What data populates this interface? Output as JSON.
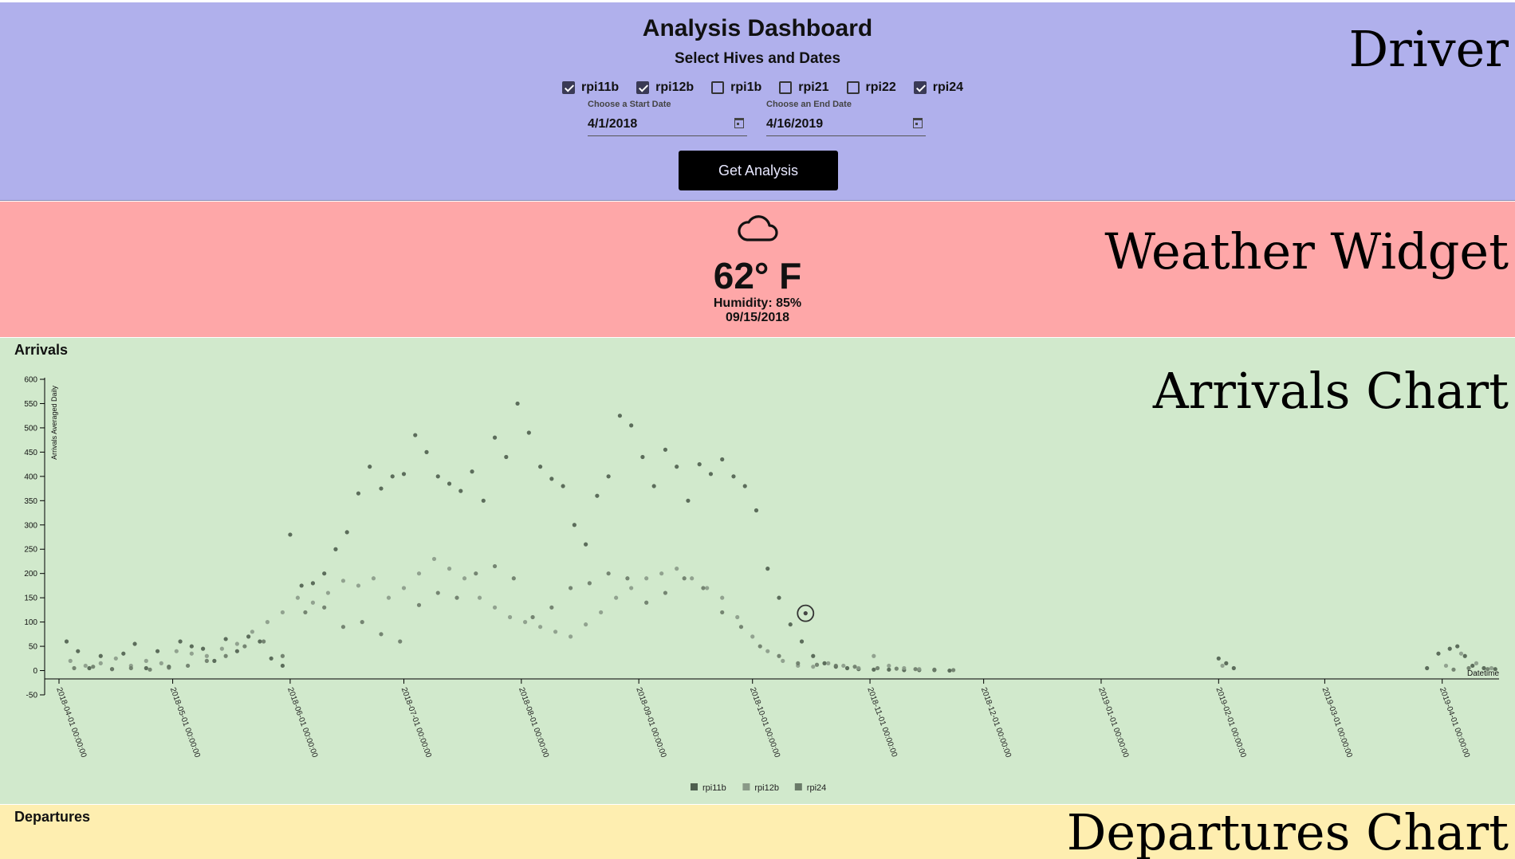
{
  "driver": {
    "title": "Analysis Dashboard",
    "subtitle": "Select Hives and Dates",
    "section_label": "Driver",
    "hives": [
      {
        "label": "rpi11b",
        "checked": true
      },
      {
        "label": "rpi12b",
        "checked": true
      },
      {
        "label": "rpi1b",
        "checked": false
      },
      {
        "label": "rpi21",
        "checked": false
      },
      {
        "label": "rpi22",
        "checked": false
      },
      {
        "label": "rpi24",
        "checked": true
      }
    ],
    "start_date": {
      "label": "Choose a Start Date",
      "value": "4/1/2018"
    },
    "end_date": {
      "label": "Choose an End Date",
      "value": "4/16/2019"
    },
    "button_label": "Get Analysis"
  },
  "weather": {
    "section_label": "Weather  Widget",
    "icon": "cloud-icon",
    "temperature": "62° F",
    "humidity": "Humidity: 85%",
    "date": "09/15/2018"
  },
  "arrivals": {
    "section_label": "Arrivals  Chart",
    "title": "Arrivals"
  },
  "departures": {
    "section_label": "Departures  Chart",
    "title": "Departures"
  },
  "colors": {
    "driver_bg": "#b0b0ec",
    "weather_bg": "#fea7a8",
    "arrivals_bg": "#d1e9cc",
    "departures_bg": "#feeeb0",
    "rpi11b": "#4f5f4f",
    "rpi12b": "#8a9a88",
    "rpi24": "#6a7a68"
  },
  "chart_data": {
    "type": "scatter",
    "title": "Arrivals",
    "ylabel": "Arrivals Averaged Daily",
    "xlabel": "Datetime",
    "ylim": [
      -50,
      600
    ],
    "yticks": [
      -50,
      0,
      50,
      100,
      150,
      200,
      250,
      300,
      350,
      400,
      450,
      500,
      550,
      600
    ],
    "xlim": [
      "2018-04-01",
      "2019-04-16"
    ],
    "xticks": [
      "2018-04-01 00:00:00",
      "2018-05-01 00:00:00",
      "2018-06-01 00:00:00",
      "2018-07-01 00:00:00",
      "2018-08-01 00:00:00",
      "2018-09-01 00:00:00",
      "2018-10-01 00:00:00",
      "2018-11-01 00:00:00",
      "2018-12-01 00:00:00",
      "2019-01-01 00:00:00",
      "2019-02-01 00:00:00",
      "2019-03-01 00:00:00",
      "2019-04-01 00:00:00"
    ],
    "legend": [
      "rpi11b",
      "rpi12b",
      "rpi24"
    ],
    "highlight": {
      "date": "2018-10-15",
      "value": 118
    },
    "series": [
      {
        "name": "rpi11b",
        "points": [
          [
            "2018-04-03",
            60
          ],
          [
            "2018-04-06",
            40
          ],
          [
            "2018-04-09",
            5
          ],
          [
            "2018-04-12",
            30
          ],
          [
            "2018-04-15",
            3
          ],
          [
            "2018-04-18",
            35
          ],
          [
            "2018-04-21",
            55
          ],
          [
            "2018-04-24",
            5
          ],
          [
            "2018-04-27",
            40
          ],
          [
            "2018-04-30",
            8
          ],
          [
            "2018-05-03",
            60
          ],
          [
            "2018-05-06",
            50
          ],
          [
            "2018-05-09",
            45
          ],
          [
            "2018-05-12",
            20
          ],
          [
            "2018-05-15",
            65
          ],
          [
            "2018-05-18",
            40
          ],
          [
            "2018-05-21",
            70
          ],
          [
            "2018-05-24",
            60
          ],
          [
            "2018-05-27",
            25
          ],
          [
            "2018-05-30",
            10
          ],
          [
            "2018-06-01",
            280
          ],
          [
            "2018-06-04",
            175
          ],
          [
            "2018-06-07",
            180
          ],
          [
            "2018-06-10",
            200
          ],
          [
            "2018-06-13",
            250
          ],
          [
            "2018-06-16",
            285
          ],
          [
            "2018-06-19",
            365
          ],
          [
            "2018-06-22",
            420
          ],
          [
            "2018-06-25",
            375
          ],
          [
            "2018-06-28",
            400
          ],
          [
            "2018-07-01",
            405
          ],
          [
            "2018-07-04",
            485
          ],
          [
            "2018-07-07",
            450
          ],
          [
            "2018-07-10",
            400
          ],
          [
            "2018-07-13",
            385
          ],
          [
            "2018-07-16",
            370
          ],
          [
            "2018-07-19",
            410
          ],
          [
            "2018-07-22",
            350
          ],
          [
            "2018-07-25",
            480
          ],
          [
            "2018-07-28",
            440
          ],
          [
            "2018-07-31",
            550
          ],
          [
            "2018-08-03",
            490
          ],
          [
            "2018-08-06",
            420
          ],
          [
            "2018-08-09",
            395
          ],
          [
            "2018-08-12",
            380
          ],
          [
            "2018-08-15",
            300
          ],
          [
            "2018-08-18",
            260
          ],
          [
            "2018-08-21",
            360
          ],
          [
            "2018-08-24",
            400
          ],
          [
            "2018-08-27",
            525
          ],
          [
            "2018-08-30",
            505
          ],
          [
            "2018-09-02",
            440
          ],
          [
            "2018-09-05",
            380
          ],
          [
            "2018-09-08",
            455
          ],
          [
            "2018-09-11",
            420
          ],
          [
            "2018-09-14",
            350
          ],
          [
            "2018-09-17",
            425
          ],
          [
            "2018-09-20",
            405
          ],
          [
            "2018-09-23",
            435
          ],
          [
            "2018-09-26",
            400
          ],
          [
            "2018-09-29",
            380
          ],
          [
            "2018-10-02",
            330
          ],
          [
            "2018-10-05",
            210
          ],
          [
            "2018-10-08",
            150
          ],
          [
            "2018-10-11",
            95
          ],
          [
            "2018-10-14",
            60
          ],
          [
            "2018-10-17",
            30
          ],
          [
            "2018-10-20",
            15
          ],
          [
            "2018-10-23",
            8
          ],
          [
            "2018-10-26",
            5
          ],
          [
            "2018-10-29",
            3
          ],
          [
            "2018-11-02",
            2
          ],
          [
            "2018-11-06",
            2
          ],
          [
            "2018-11-10",
            1
          ],
          [
            "2018-11-14",
            1
          ],
          [
            "2018-11-18",
            1
          ],
          [
            "2018-11-22",
            0
          ],
          [
            "2019-02-01",
            25
          ],
          [
            "2019-02-03",
            15
          ],
          [
            "2019-02-05",
            5
          ],
          [
            "2019-03-28",
            5
          ],
          [
            "2019-03-31",
            35
          ],
          [
            "2019-04-03",
            45
          ],
          [
            "2019-04-05",
            50
          ],
          [
            "2019-04-07",
            30
          ],
          [
            "2019-04-09",
            10
          ],
          [
            "2019-04-12",
            5
          ],
          [
            "2019-04-15",
            3
          ]
        ]
      },
      {
        "name": "rpi12b",
        "points": [
          [
            "2018-04-04",
            20
          ],
          [
            "2018-04-08",
            10
          ],
          [
            "2018-04-12",
            15
          ],
          [
            "2018-04-16",
            25
          ],
          [
            "2018-04-20",
            10
          ],
          [
            "2018-04-24",
            20
          ],
          [
            "2018-04-28",
            15
          ],
          [
            "2018-05-02",
            40
          ],
          [
            "2018-05-06",
            35
          ],
          [
            "2018-05-10",
            30
          ],
          [
            "2018-05-14",
            45
          ],
          [
            "2018-05-18",
            55
          ],
          [
            "2018-05-22",
            80
          ],
          [
            "2018-05-26",
            100
          ],
          [
            "2018-05-30",
            120
          ],
          [
            "2018-06-03",
            150
          ],
          [
            "2018-06-07",
            140
          ],
          [
            "2018-06-11",
            160
          ],
          [
            "2018-06-15",
            185
          ],
          [
            "2018-06-19",
            175
          ],
          [
            "2018-06-23",
            190
          ],
          [
            "2018-06-27",
            150
          ],
          [
            "2018-07-01",
            170
          ],
          [
            "2018-07-05",
            200
          ],
          [
            "2018-07-09",
            230
          ],
          [
            "2018-07-13",
            210
          ],
          [
            "2018-07-17",
            190
          ],
          [
            "2018-07-21",
            150
          ],
          [
            "2018-07-25",
            130
          ],
          [
            "2018-07-29",
            110
          ],
          [
            "2018-08-02",
            100
          ],
          [
            "2018-08-06",
            90
          ],
          [
            "2018-08-10",
            80
          ],
          [
            "2018-08-14",
            70
          ],
          [
            "2018-08-18",
            95
          ],
          [
            "2018-08-22",
            120
          ],
          [
            "2018-08-26",
            150
          ],
          [
            "2018-08-30",
            170
          ],
          [
            "2018-09-03",
            190
          ],
          [
            "2018-09-07",
            200
          ],
          [
            "2018-09-11",
            210
          ],
          [
            "2018-09-15",
            190
          ],
          [
            "2018-09-19",
            170
          ],
          [
            "2018-09-23",
            150
          ],
          [
            "2018-09-27",
            110
          ],
          [
            "2018-10-01",
            70
          ],
          [
            "2018-10-05",
            40
          ],
          [
            "2018-10-09",
            20
          ],
          [
            "2018-10-13",
            10
          ],
          [
            "2018-10-17",
            8
          ],
          [
            "2018-10-21",
            15
          ],
          [
            "2018-10-25",
            10
          ],
          [
            "2018-10-29",
            5
          ],
          [
            "2018-11-02",
            30
          ],
          [
            "2018-11-06",
            10
          ],
          [
            "2018-11-10",
            5
          ],
          [
            "2018-11-14",
            3
          ],
          [
            "2019-02-02",
            10
          ],
          [
            "2019-04-02",
            10
          ],
          [
            "2019-04-06",
            35
          ],
          [
            "2019-04-10",
            15
          ],
          [
            "2019-04-14",
            5
          ]
        ]
      },
      {
        "name": "rpi24",
        "points": [
          [
            "2018-04-05",
            5
          ],
          [
            "2018-04-10",
            8
          ],
          [
            "2018-04-15",
            3
          ],
          [
            "2018-04-20",
            5
          ],
          [
            "2018-04-25",
            2
          ],
          [
            "2018-04-30",
            6
          ],
          [
            "2018-05-05",
            10
          ],
          [
            "2018-05-10",
            20
          ],
          [
            "2018-05-15",
            30
          ],
          [
            "2018-05-20",
            50
          ],
          [
            "2018-05-25",
            60
          ],
          [
            "2018-05-30",
            30
          ],
          [
            "2018-06-05",
            120
          ],
          [
            "2018-06-10",
            130
          ],
          [
            "2018-06-15",
            90
          ],
          [
            "2018-06-20",
            100
          ],
          [
            "2018-06-25",
            75
          ],
          [
            "2018-06-30",
            60
          ],
          [
            "2018-07-05",
            135
          ],
          [
            "2018-07-10",
            160
          ],
          [
            "2018-07-15",
            150
          ],
          [
            "2018-07-20",
            200
          ],
          [
            "2018-07-25",
            215
          ],
          [
            "2018-07-30",
            190
          ],
          [
            "2018-08-04",
            110
          ],
          [
            "2018-08-09",
            130
          ],
          [
            "2018-08-14",
            170
          ],
          [
            "2018-08-19",
            180
          ],
          [
            "2018-08-24",
            200
          ],
          [
            "2018-08-29",
            190
          ],
          [
            "2018-09-03",
            140
          ],
          [
            "2018-09-08",
            160
          ],
          [
            "2018-09-13",
            190
          ],
          [
            "2018-09-18",
            170
          ],
          [
            "2018-09-23",
            120
          ],
          [
            "2018-09-28",
            90
          ],
          [
            "2018-10-03",
            50
          ],
          [
            "2018-10-08",
            30
          ],
          [
            "2018-10-13",
            15
          ],
          [
            "2018-10-18",
            12
          ],
          [
            "2018-10-23",
            10
          ],
          [
            "2018-10-28",
            8
          ],
          [
            "2018-11-03",
            5
          ],
          [
            "2018-11-08",
            4
          ],
          [
            "2018-11-13",
            3
          ],
          [
            "2018-11-18",
            2
          ],
          [
            "2018-11-23",
            1
          ],
          [
            "2019-04-04",
            2
          ],
          [
            "2019-04-08",
            5
          ],
          [
            "2019-04-13",
            3
          ]
        ]
      }
    ]
  }
}
